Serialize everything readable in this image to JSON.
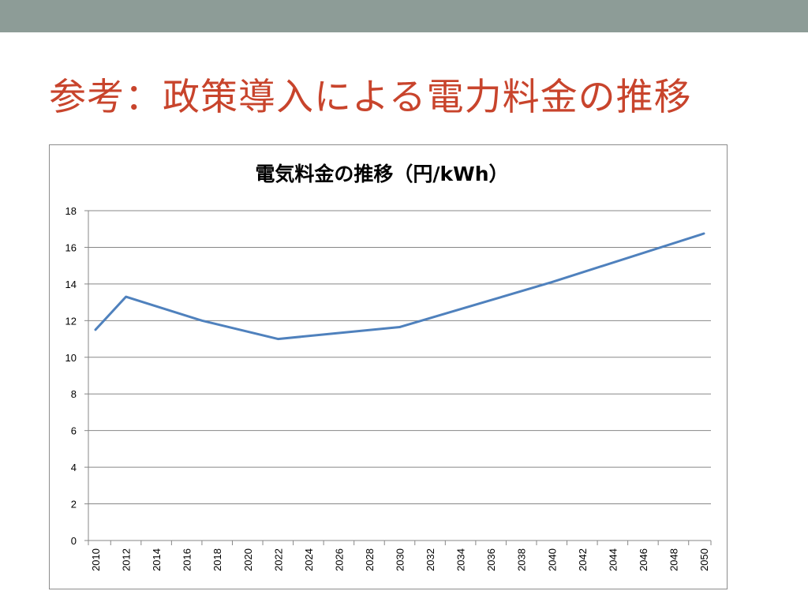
{
  "slide": {
    "title": "参考：政策導入による電力料金の推移",
    "header_bar_color": "#8d9c97",
    "title_color": "#c8442c"
  },
  "chart_data": {
    "type": "line",
    "title": "電気料金の推移（円/kWh）",
    "xlabel": "",
    "ylabel": "",
    "categories": [
      "2010",
      "2012",
      "2014",
      "2016",
      "2018",
      "2020",
      "2022",
      "2024",
      "2026",
      "2028",
      "2030",
      "2032",
      "2034",
      "2036",
      "2038",
      "2040",
      "2042",
      "2044",
      "2046",
      "2048",
      "2050"
    ],
    "ylim": [
      0,
      18
    ],
    "yticks": [
      0,
      2,
      4,
      6,
      8,
      10,
      12,
      14,
      16,
      18
    ],
    "grid": true,
    "legend": "none",
    "series": [
      {
        "color": "#4f81bd",
        "points": [
          {
            "x": 2010,
            "y": 11.5
          },
          {
            "x": 2012,
            "y": 13.3
          },
          {
            "x": 2017,
            "y": 12.0
          },
          {
            "x": 2022,
            "y": 11.0
          },
          {
            "x": 2030,
            "y": 11.65
          },
          {
            "x": 2040,
            "y": 14.1
          },
          {
            "x": 2050,
            "y": 16.75
          }
        ]
      }
    ]
  }
}
